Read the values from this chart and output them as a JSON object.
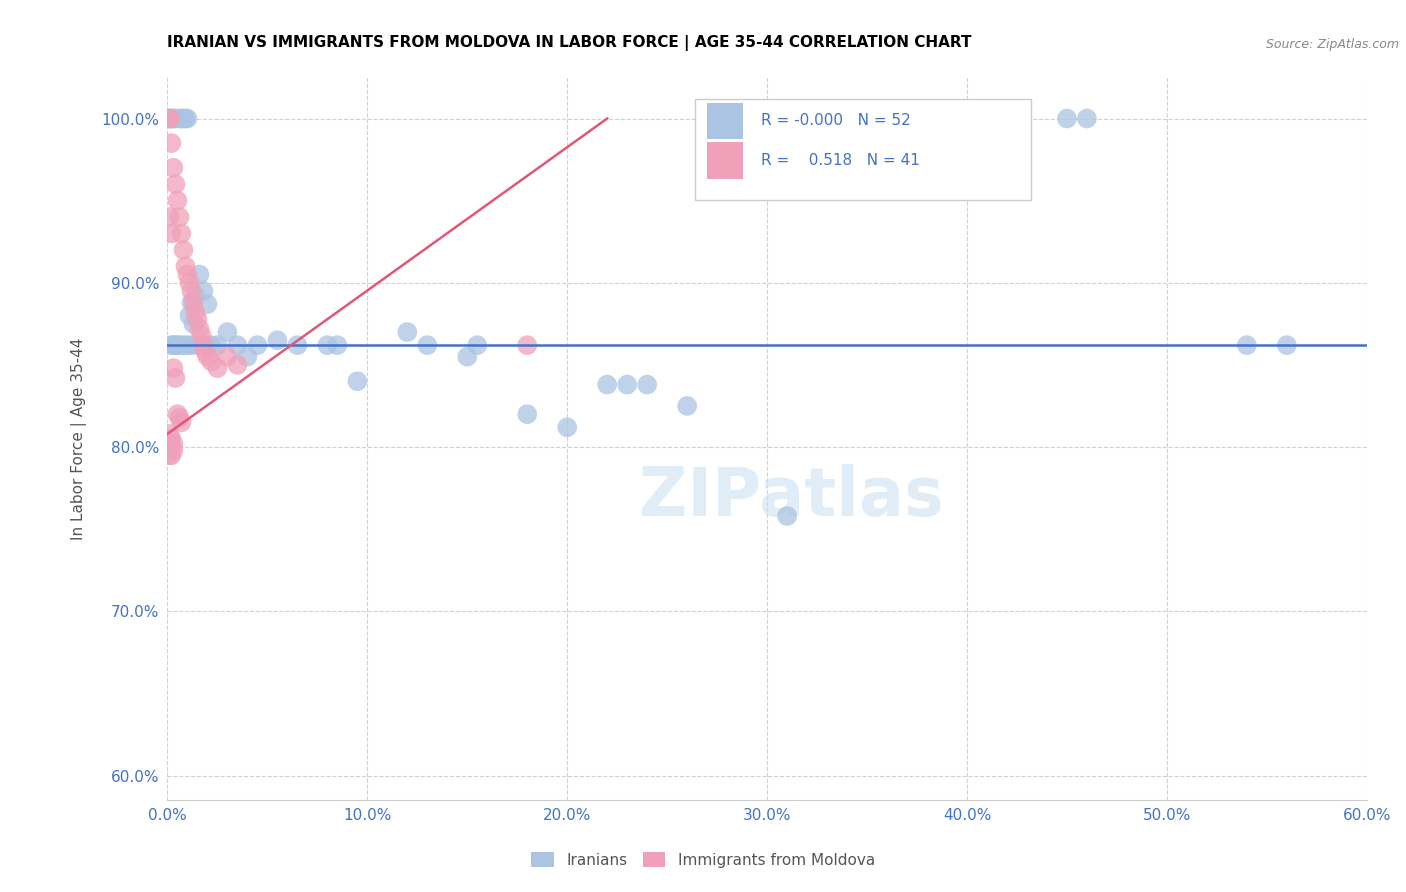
{
  "title": "IRANIAN VS IMMIGRANTS FROM MOLDOVA IN LABOR FORCE | AGE 35-44 CORRELATION CHART",
  "source": "Source: ZipAtlas.com",
  "ylabel": "In Labor Force | Age 35-44",
  "xlim": [
    0.0,
    0.6
  ],
  "ylim": [
    0.585,
    1.025
  ],
  "xticks": [
    0.0,
    0.1,
    0.2,
    0.3,
    0.4,
    0.5,
    0.6
  ],
  "xtick_labels": [
    "0.0%",
    "",
    "",
    "",
    "",
    "",
    "60.0%"
  ],
  "yticks": [
    0.6,
    0.7,
    0.8,
    0.9,
    1.0
  ],
  "ytick_labels": [
    "60.0%",
    "70.0%",
    "80.0%",
    "90.0%",
    "100.0%"
  ],
  "blue_color": "#aac4e2",
  "pink_color": "#f0a0b8",
  "blue_line_color": "#4472c4",
  "pink_line_color": "#e05878",
  "legend_blue_R": "-0.000",
  "legend_blue_N": "52",
  "legend_pink_R": "0.518",
  "legend_pink_N": "41",
  "iranians_x": [
    0.001,
    0.002,
    0.003,
    0.004,
    0.006,
    0.007,
    0.008,
    0.009,
    0.01,
    0.011,
    0.012,
    0.013,
    0.014,
    0.016,
    0.018,
    0.02,
    0.022,
    0.025,
    0.03,
    0.035,
    0.04,
    0.045,
    0.055,
    0.065,
    0.08,
    0.085,
    0.095,
    0.12,
    0.13,
    0.15,
    0.155,
    0.18,
    0.2,
    0.22,
    0.23,
    0.24,
    0.26,
    0.31,
    0.45,
    0.46,
    0.54,
    0.56,
    0.002,
    0.003,
    0.004,
    0.005,
    0.006,
    0.008,
    0.01,
    0.012,
    0.015,
    0.018
  ],
  "iranians_y": [
    1.0,
    1.0,
    1.0,
    1.0,
    1.0,
    1.0,
    1.0,
    1.0,
    1.0,
    0.88,
    0.888,
    0.875,
    0.892,
    0.905,
    0.895,
    0.887,
    0.862,
    0.862,
    0.87,
    0.862,
    0.855,
    0.862,
    0.865,
    0.862,
    0.862,
    0.862,
    0.84,
    0.87,
    0.862,
    0.855,
    0.862,
    0.82,
    0.812,
    0.838,
    0.838,
    0.838,
    0.825,
    0.758,
    1.0,
    1.0,
    0.862,
    0.862,
    0.862,
    0.862,
    0.862,
    0.862,
    0.862,
    0.862,
    0.862,
    0.862,
    0.862,
    0.862
  ],
  "moldova_x": [
    0.001,
    0.001,
    0.002,
    0.003,
    0.004,
    0.005,
    0.006,
    0.007,
    0.008,
    0.009,
    0.01,
    0.011,
    0.012,
    0.013,
    0.014,
    0.015,
    0.016,
    0.017,
    0.018,
    0.019,
    0.02,
    0.022,
    0.025,
    0.001,
    0.002,
    0.003,
    0.004,
    0.001,
    0.002,
    0.003,
    0.005,
    0.006,
    0.007,
    0.03,
    0.035,
    0.001,
    0.001,
    0.002,
    0.002,
    0.003,
    0.18
  ],
  "moldova_y": [
    1.0,
    1.0,
    0.985,
    0.97,
    0.96,
    0.95,
    0.94,
    0.93,
    0.92,
    0.91,
    0.905,
    0.9,
    0.895,
    0.888,
    0.882,
    0.878,
    0.872,
    0.868,
    0.862,
    0.858,
    0.855,
    0.852,
    0.848,
    0.94,
    0.93,
    0.848,
    0.842,
    0.808,
    0.805,
    0.802,
    0.82,
    0.818,
    0.815,
    0.855,
    0.85,
    0.8,
    0.795,
    0.8,
    0.795,
    0.798,
    0.862
  ],
  "blue_trend_y": 0.862,
  "pink_trend_x0": 0.0,
  "pink_trend_y0": 0.808,
  "pink_trend_x1": 0.22,
  "pink_trend_y1": 1.0
}
